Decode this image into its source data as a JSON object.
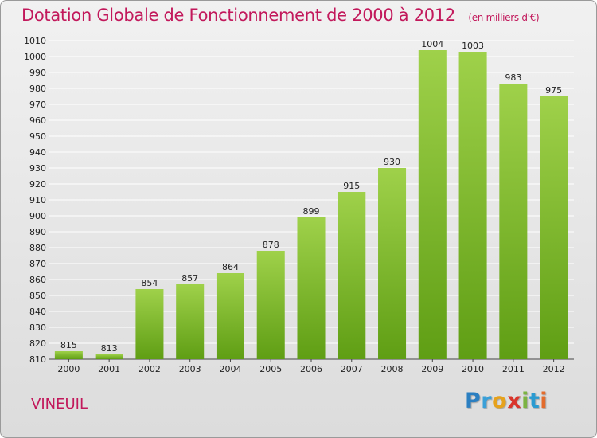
{
  "header": {
    "title": "Dotation Globale de Fonctionnement de 2000 à 2012",
    "unit": "(en milliers d'€)"
  },
  "footer": {
    "commune": "VINEUIL",
    "logo_text": "Proxiti"
  },
  "colors": {
    "title": "#c2185b",
    "bar_top": "#9fd14a",
    "bar_bottom": "#5f9e14",
    "grid": "#ffffff"
  },
  "chart_data": {
    "type": "bar",
    "categories": [
      "2000",
      "2001",
      "2002",
      "2003",
      "2004",
      "2005",
      "2006",
      "2007",
      "2008",
      "2009",
      "2010",
      "2011",
      "2012"
    ],
    "values": [
      815,
      813,
      854,
      857,
      864,
      878,
      899,
      915,
      930,
      1004,
      1003,
      983,
      975
    ],
    "title": "Dotation Globale de Fonctionnement de 2000 à 2012",
    "subtitle": "(en milliers d'€)",
    "ylim": [
      810,
      1010
    ],
    "yticks": [
      810,
      820,
      830,
      840,
      850,
      860,
      870,
      880,
      890,
      900,
      910,
      920,
      930,
      940,
      950,
      960,
      970,
      980,
      990,
      1000,
      1010
    ],
    "grid": true
  }
}
